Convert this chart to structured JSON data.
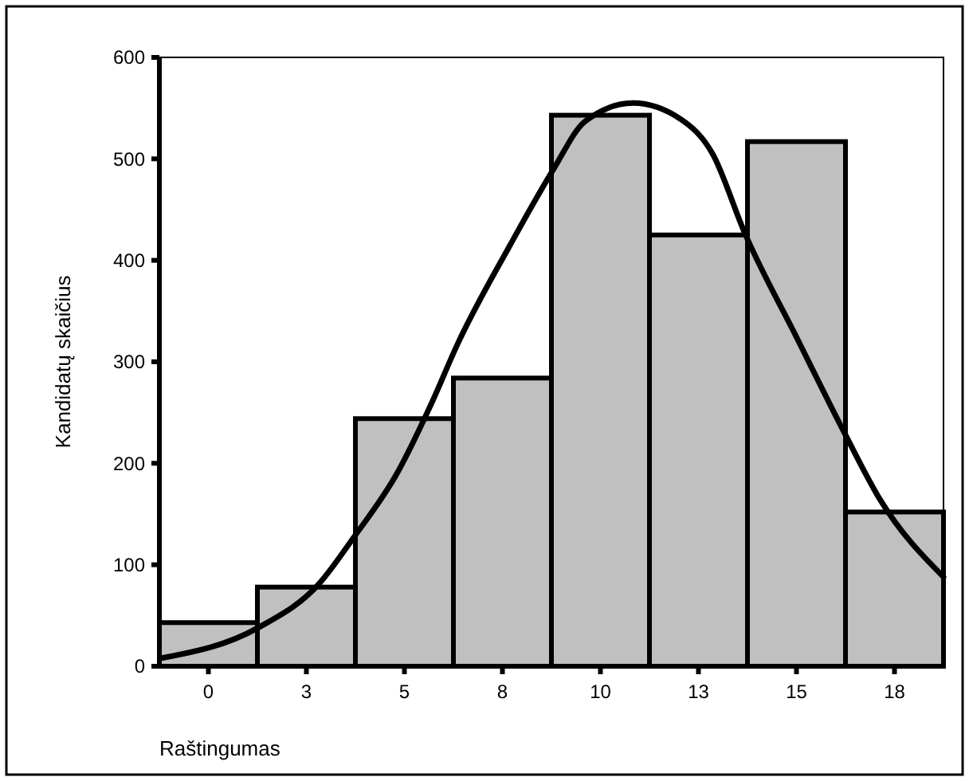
{
  "chart_data": {
    "type": "histogram",
    "xlabel": "Raštingumas",
    "ylabel": "Kandidatų skaičius",
    "bins": [
      -1.25,
      1.25,
      3.75,
      6.25,
      8.75,
      11.25,
      13.75,
      16.25,
      18.75
    ],
    "values": [
      43,
      78,
      244,
      284,
      543,
      425,
      517,
      152
    ],
    "color": "#c0c0c0",
    "series": [
      {
        "type": "line",
        "color": "#000000",
        "x": [
          -1.19,
          1.27,
          2.84,
          3.69,
          4.84,
          5.69,
          6.35,
          7.71,
          8.79,
          9.61,
          10.83,
          12.05,
          12.86,
          13.68,
          15.03,
          16.25,
          17.12,
          18.75
        ],
        "values": [
          8,
          38,
          82,
          126,
          192,
          259,
          317,
          416,
          489,
          537,
          555,
          539,
          505,
          427,
          322,
          228,
          165,
          88
        ]
      }
    ],
    "xlim": [
      -1.25,
      18.75
    ],
    "xticks": [
      0,
      {
        "value": 2.5,
        "label": "3"
      },
      5,
      {
        "value": 7.5,
        "label": "8"
      },
      10,
      {
        "value": 12.5,
        "label": "13"
      },
      15,
      {
        "value": 17.5,
        "label": "18"
      }
    ],
    "ylim": [
      0,
      600
    ],
    "yticks": [
      0,
      100,
      200,
      300,
      400,
      500,
      600
    ],
    "grid": false
  }
}
